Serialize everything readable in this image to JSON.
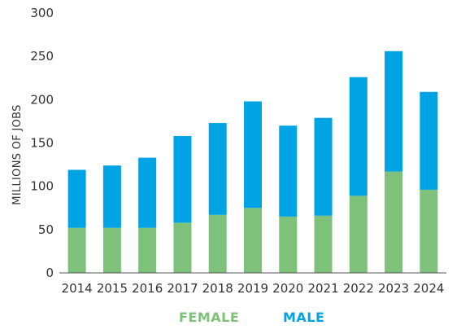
{
  "chart_data": {
    "type": "bar",
    "stacked": true,
    "categories": [
      "2014",
      "2015",
      "2016",
      "2017",
      "2018",
      "2019",
      "2020",
      "2021",
      "2022",
      "2023",
      "2024"
    ],
    "series": [
      {
        "name": "FEMALE",
        "color": "#7dc17a",
        "values": [
          52,
          52,
          52,
          58,
          67,
          75,
          65,
          66,
          89,
          117,
          96
        ]
      },
      {
        "name": "MALE",
        "color": "#00a4e4",
        "values": [
          67,
          72,
          81,
          100,
          106,
          123,
          105,
          113,
          137,
          139,
          113
        ]
      }
    ],
    "ylabel": "MILLIONS OF JOBS",
    "ylim": [
      0,
      300
    ],
    "yticks": [
      0,
      50,
      100,
      150,
      200,
      250,
      300
    ],
    "grid": false,
    "legend_position": "bottom-center"
  }
}
